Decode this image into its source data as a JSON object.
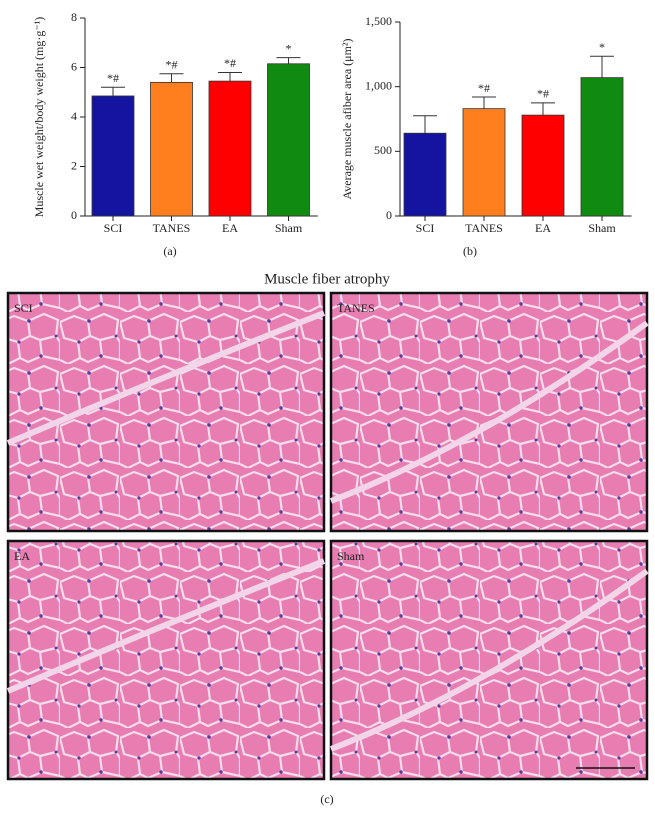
{
  "chart_data": [
    {
      "type": "bar",
      "caption": "(a)",
      "y_label": "Muscle wet weight/body weight (mg·g⁻¹)",
      "categories": [
        "SCI",
        "TANES",
        "EA",
        "Sham"
      ],
      "values": [
        4.85,
        5.4,
        5.45,
        6.15
      ],
      "errors": [
        0.35,
        0.35,
        0.35,
        0.25
      ],
      "annotations": [
        "*#",
        "*#",
        "*#",
        "*"
      ],
      "colors": [
        "#1414a0",
        "#ff7f1e",
        "#ff0000",
        "#108a10"
      ],
      "ylim": [
        0,
        8
      ],
      "yticks": [
        0,
        2,
        4,
        6,
        8
      ]
    },
    {
      "type": "bar",
      "caption": "(b)",
      "y_label": "Average muscle afiber area (μm²)",
      "categories": [
        "SCI",
        "TANES",
        "EA",
        "Sham"
      ],
      "values": [
        640,
        830,
        780,
        1070
      ],
      "errors": [
        135,
        90,
        95,
        165
      ],
      "annotations": [
        "*#",
        "*#",
        "*"
      ],
      "annotation_for": [
        1,
        2,
        3
      ],
      "colors": [
        "#1414a0",
        "#ff7f1e",
        "#ff0000",
        "#108a10"
      ],
      "ylim": [
        0,
        1500
      ],
      "yticks": [
        0,
        500,
        {
          "value": 1000,
          "label": "1,000"
        },
        {
          "value": 1500,
          "label": "1,500"
        }
      ]
    }
  ],
  "histology": {
    "title": "Muscle fiber atrophy",
    "caption": "(c)",
    "panels": [
      "SCI",
      "TANES",
      "EA",
      "Sham"
    ]
  }
}
